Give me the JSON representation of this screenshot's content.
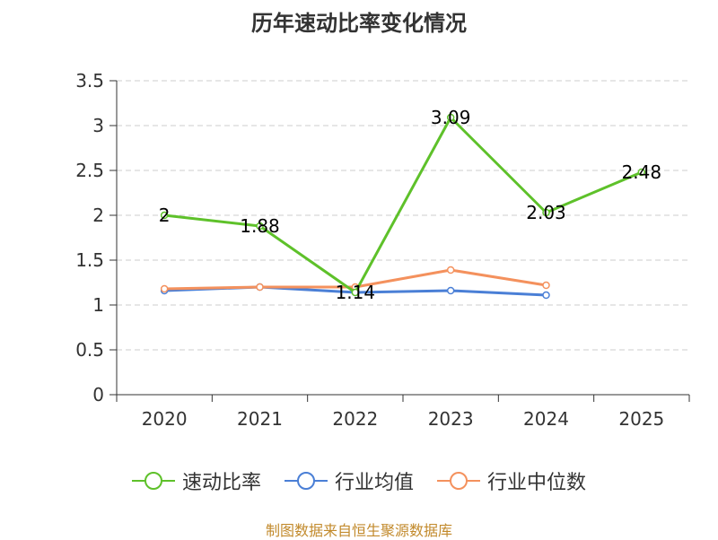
{
  "chart_data": {
    "type": "line",
    "title": "历年速动比率变化情况",
    "categories": [
      "2020",
      "2021",
      "2022",
      "2023",
      "2024",
      "2025"
    ],
    "ylim": [
      0,
      3.5
    ],
    "yticks": [
      "0",
      "0.5",
      "1",
      "1.5",
      "2",
      "2.5",
      "3",
      "3.5"
    ],
    "grid": true,
    "legend_position": "bottom",
    "series": [
      {
        "name": "速动比率",
        "values": [
          2,
          1.88,
          1.14,
          3.09,
          2.03,
          2.48
        ],
        "labels": [
          "2",
          "1.88",
          "1.14",
          "3.09",
          "2.03",
          "2.48"
        ],
        "color": "#5ec12a"
      },
      {
        "name": "行业均值",
        "values": [
          1.16,
          1.2,
          1.14,
          1.16,
          1.11,
          null
        ],
        "color": "#4a7fd6"
      },
      {
        "name": "行业中位数",
        "values": [
          1.18,
          1.2,
          1.2,
          1.39,
          1.22,
          null
        ],
        "color": "#f4915d"
      }
    ]
  },
  "source": "制图数据来自恒生聚源数据库"
}
